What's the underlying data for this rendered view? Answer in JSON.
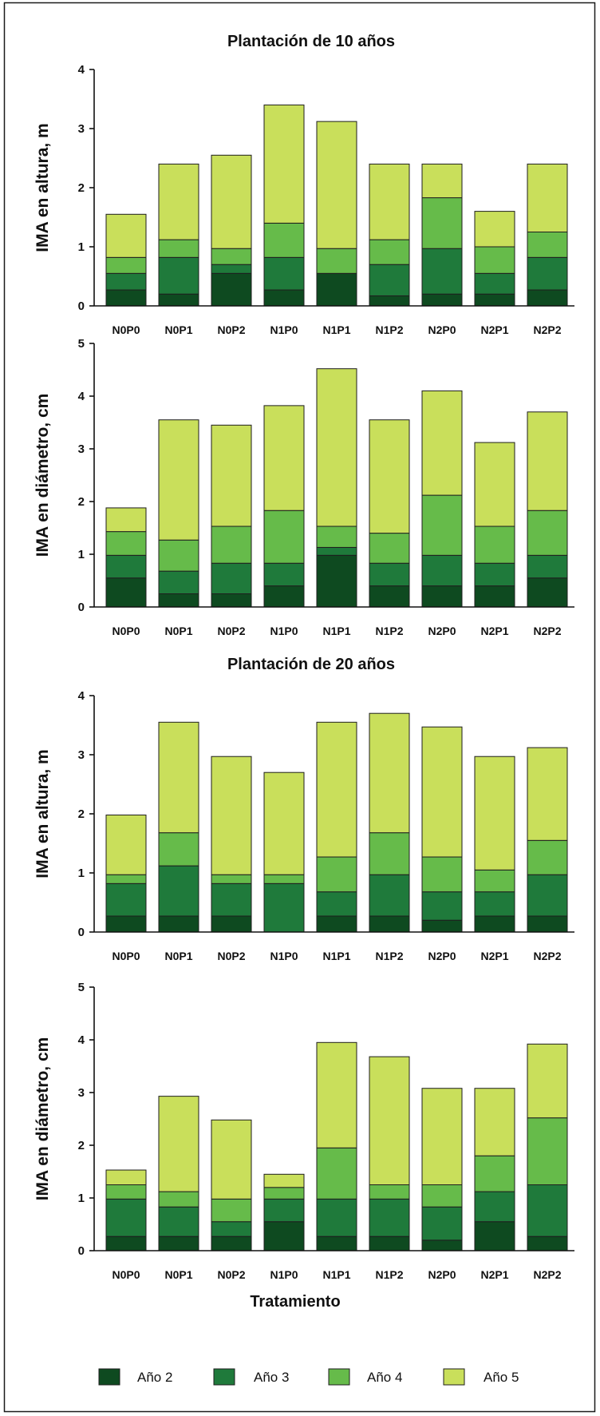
{
  "chart_data": [
    {
      "type": "bar",
      "stacked": true,
      "title": "Plantación de 10 años",
      "ylabel": "IMA en altura, m",
      "ylim": [
        0,
        4
      ],
      "yticks": [
        0,
        1,
        2,
        3,
        4
      ],
      "grid": false,
      "categories": [
        "N0P0",
        "N0P1",
        "N0P2",
        "N1P0",
        "N1P1",
        "N1P2",
        "N2P0",
        "N2P1",
        "N2P2"
      ],
      "series": [
        {
          "name": "Año 2",
          "color": "#0e4a20",
          "values": [
            0.27,
            0.2,
            0.55,
            0.27,
            0.55,
            0.17,
            0.2,
            0.2,
            0.27
          ]
        },
        {
          "name": "Año 3",
          "color": "#1f7a3b",
          "values": [
            0.28,
            0.62,
            0.15,
            0.55,
            0,
            0.53,
            0.77,
            0.35,
            0.55
          ]
        },
        {
          "name": "Año 4",
          "color": "#66bb4a",
          "values": [
            0.27,
            0.3,
            0.27,
            0.58,
            0.42,
            0.42,
            0.86,
            0.45,
            0.43
          ]
        },
        {
          "name": "Año 5",
          "color": "#c9df5b",
          "values": [
            0.73,
            1.28,
            1.58,
            2.0,
            2.15,
            1.28,
            0.57,
            0.6,
            1.15
          ]
        }
      ]
    },
    {
      "type": "bar",
      "stacked": true,
      "ylabel": "IMA en diámetro, cm",
      "ylim": [
        0,
        5
      ],
      "yticks": [
        0,
        1,
        2,
        3,
        4,
        5
      ],
      "grid": false,
      "categories": [
        "N0P0",
        "N0P1",
        "N0P2",
        "N1P0",
        "N1P1",
        "N1P2",
        "N2P0",
        "N2P1",
        "N2P2"
      ],
      "series": [
        {
          "name": "Año 2",
          "color": "#0e4a20",
          "values": [
            0.55,
            0.25,
            0.25,
            0.4,
            0.98,
            0.4,
            0.4,
            0.4,
            0.55
          ]
        },
        {
          "name": "Año 3",
          "color": "#1f7a3b",
          "values": [
            0.43,
            0.43,
            0.58,
            0.43,
            0.15,
            0.43,
            0.58,
            0.43,
            0.43
          ]
        },
        {
          "name": "Año 4",
          "color": "#66bb4a",
          "values": [
            0.45,
            0.59,
            0.7,
            1.0,
            0.4,
            0.57,
            1.14,
            0.7,
            0.85
          ]
        },
        {
          "name": "Año 5",
          "color": "#c9df5b",
          "values": [
            0.45,
            2.28,
            1.92,
            1.99,
            2.99,
            2.15,
            1.98,
            1.59,
            1.87
          ]
        }
      ]
    },
    {
      "type": "bar",
      "stacked": true,
      "title": "Plantación de 20 años",
      "ylabel": "IMA en altura, m",
      "ylim": [
        0,
        4
      ],
      "yticks": [
        0,
        1,
        2,
        3,
        4
      ],
      "grid": false,
      "categories": [
        "N0P0",
        "N0P1",
        "N0P2",
        "N1P0",
        "N1P1",
        "N1P2",
        "N2P0",
        "N2P1",
        "N2P2"
      ],
      "series": [
        {
          "name": "Año 2",
          "color": "#0e4a20",
          "values": [
            0.27,
            0.27,
            0.27,
            0,
            0.27,
            0.27,
            0.2,
            0.27,
            0.27
          ]
        },
        {
          "name": "Año 3",
          "color": "#1f7a3b",
          "values": [
            0.55,
            0.85,
            0.55,
            0.82,
            0.41,
            0.7,
            0.48,
            0.41,
            0.7
          ]
        },
        {
          "name": "Año 4",
          "color": "#66bb4a",
          "values": [
            0.15,
            0.56,
            0.15,
            0.15,
            0.59,
            0.71,
            0.59,
            0.37,
            0.58
          ]
        },
        {
          "name": "Año 5",
          "color": "#c9df5b",
          "values": [
            1.01,
            1.87,
            2.0,
            1.73,
            2.28,
            2.02,
            2.2,
            1.92,
            1.57
          ]
        }
      ]
    },
    {
      "type": "bar",
      "stacked": true,
      "ylabel": "IMA en diámetro, cm",
      "xlabel": "Tratamiento",
      "ylim": [
        0,
        5
      ],
      "yticks": [
        0,
        1,
        2,
        3,
        4,
        5
      ],
      "grid": false,
      "legend_position": "bottom",
      "categories": [
        "N0P0",
        "N0P1",
        "N0P2",
        "N1P0",
        "N1P1",
        "N1P2",
        "N2P0",
        "N2P1",
        "N2P2"
      ],
      "series": [
        {
          "name": "Año 2",
          "color": "#0e4a20",
          "values": [
            0.27,
            0.27,
            0.27,
            0.55,
            0.27,
            0.27,
            0.2,
            0.55,
            0.27
          ]
        },
        {
          "name": "Año 3",
          "color": "#1f7a3b",
          "values": [
            0.71,
            0.56,
            0.28,
            0.43,
            0.71,
            0.71,
            0.63,
            0.57,
            0.98
          ]
        },
        {
          "name": "Año 4",
          "color": "#66bb4a",
          "values": [
            0.27,
            0.29,
            0.43,
            0.22,
            0.97,
            0.27,
            0.42,
            0.68,
            1.27
          ]
        },
        {
          "name": "Año 5",
          "color": "#c9df5b",
          "values": [
            0.28,
            1.81,
            1.5,
            0.25,
            2.0,
            2.43,
            1.83,
            1.28,
            1.4
          ]
        }
      ]
    }
  ]
}
